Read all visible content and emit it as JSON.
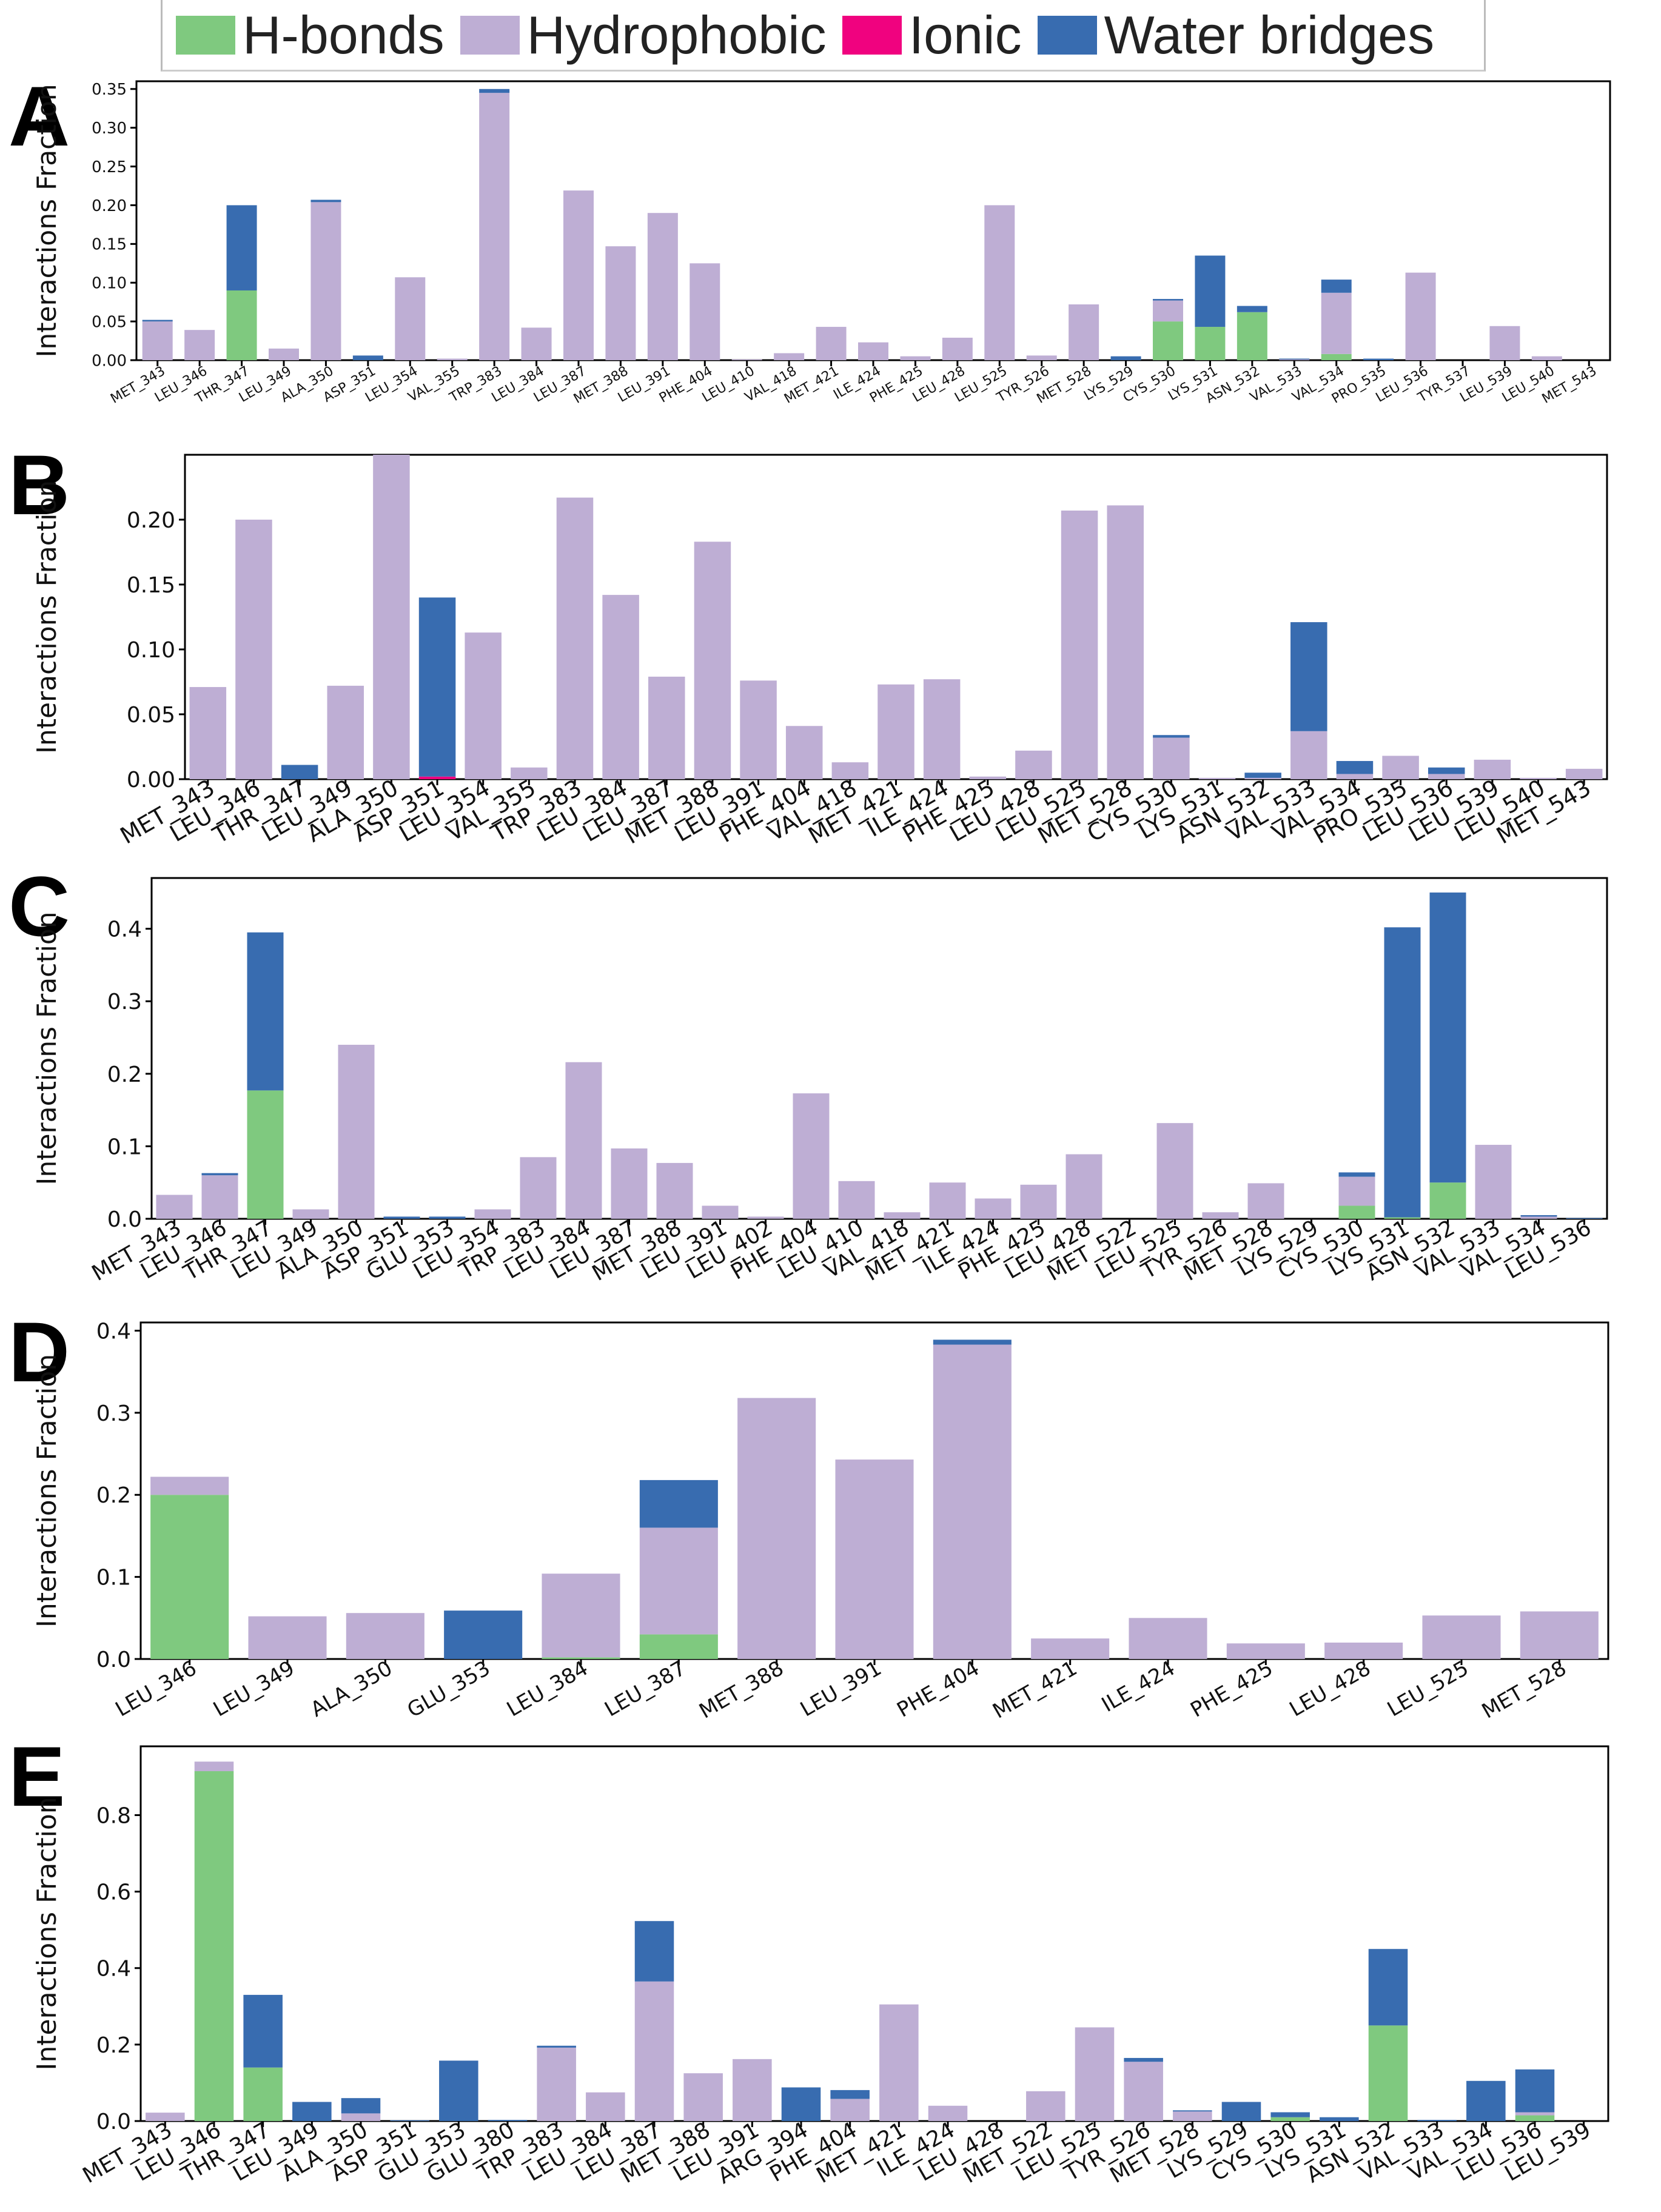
{
  "legend": {
    "items": [
      {
        "label": "H-bonds",
        "color": "#7fc97f"
      },
      {
        "label": "Hydrophobic",
        "color": "#beaed4"
      },
      {
        "label": "Ionic",
        "color": "#f0027f"
      },
      {
        "label": "Water bridges",
        "color": "#386cb0"
      }
    ]
  },
  "chart_data": [
    {
      "panel": "A",
      "type": "bar",
      "stacked": true,
      "ylabel": "Interactions Fraction",
      "ylim": [
        0,
        0.36
      ],
      "yticks": [
        "0.00",
        "0.05",
        "0.10",
        "0.15",
        "0.20",
        "0.25",
        "0.30",
        "0.35"
      ],
      "categories": [
        "MET_343",
        "LEU_346",
        "THR_347",
        "LEU_349",
        "ALA_350",
        "ASP_351",
        "LEU_354",
        "VAL_355",
        "TRP_383",
        "LEU_384",
        "LEU_387",
        "MET_388",
        "LEU_391",
        "PHE_404",
        "LEU_410",
        "VAL_418",
        "MET_421",
        "ILE_424",
        "PHE_425",
        "LEU_428",
        "LEU_525",
        "TYR_526",
        "MET_528",
        "LYS_529",
        "CYS_530",
        "LYS_531",
        "ASN_532",
        "VAL_533",
        "VAL_534",
        "PRO_535",
        "LEU_536",
        "TYR_537",
        "LEU_539",
        "LEU_540",
        "MET_543"
      ],
      "series": [
        {
          "name": "H-bonds",
          "values": [
            0,
            0,
            0.09,
            0,
            0,
            0,
            0,
            0,
            0,
            0,
            0,
            0,
            0,
            0,
            0,
            0,
            0,
            0,
            0,
            0,
            0,
            0,
            0,
            0,
            0.05,
            0.043,
            0.062,
            0,
            0.008,
            0,
            0,
            0,
            0,
            0,
            0
          ]
        },
        {
          "name": "Hydrophobic",
          "values": [
            0.05,
            0.039,
            0,
            0.015,
            0.204,
            0,
            0.107,
            0.002,
            0.345,
            0.042,
            0.219,
            0.147,
            0.19,
            0.125,
            0.001,
            0.009,
            0.043,
            0.023,
            0.005,
            0.029,
            0.2,
            0.006,
            0.072,
            0,
            0.027,
            0,
            0,
            0.001,
            0.079,
            0,
            0.113,
            0,
            0.044,
            0.005,
            0
          ]
        },
        {
          "name": "Ionic",
          "values": [
            0,
            0,
            0,
            0,
            0,
            0,
            0,
            0,
            0,
            0,
            0,
            0,
            0,
            0,
            0,
            0,
            0,
            0,
            0,
            0,
            0,
            0,
            0,
            0,
            0,
            0,
            0,
            0,
            0,
            0,
            0,
            0,
            0,
            0,
            0
          ]
        },
        {
          "name": "Water bridges",
          "values": [
            0.002,
            0,
            0.11,
            0,
            0.003,
            0.006,
            0,
            0,
            0.005,
            0,
            0,
            0,
            0,
            0,
            0,
            0,
            0,
            0,
            0,
            0,
            0,
            0,
            0,
            0.005,
            0.002,
            0.092,
            0.008,
            0.001,
            0.017,
            0.002,
            0,
            0,
            0,
            0,
            0
          ]
        }
      ]
    },
    {
      "panel": "B",
      "type": "bar",
      "stacked": true,
      "ylabel": "Interactions Fraction",
      "ylim": [
        0,
        0.25
      ],
      "yticks": [
        "0.00",
        "0.05",
        "0.10",
        "0.15",
        "0.20"
      ],
      "categories": [
        "MET_343",
        "LEU_346",
        "THR_347",
        "LEU_349",
        "ALA_350",
        "ASP_351",
        "LEU_354",
        "VAL_355",
        "TRP_383",
        "LEU_384",
        "LEU_387",
        "MET_388",
        "LEU_391",
        "PHE_404",
        "VAL_418",
        "MET_421",
        "ILE_424",
        "PHE_425",
        "LEU_428",
        "LEU_525",
        "MET_528",
        "CYS_530",
        "LYS_531",
        "ASN_532",
        "VAL_533",
        "VAL_534",
        "PRO_535",
        "LEU_536",
        "LEU_539",
        "LEU_540",
        "MET_543"
      ],
      "series": [
        {
          "name": "H-bonds",
          "values": [
            0,
            0,
            0,
            0,
            0,
            0,
            0,
            0,
            0,
            0,
            0,
            0,
            0,
            0,
            0,
            0,
            0,
            0,
            0,
            0,
            0,
            0,
            0,
            0,
            0,
            0,
            0,
            0,
            0,
            0,
            0
          ]
        },
        {
          "name": "Hydrophobic",
          "values": [
            0.071,
            0.2,
            0,
            0.072,
            0.26,
            0,
            0.113,
            0.009,
            0.217,
            0.142,
            0.079,
            0.183,
            0.076,
            0.041,
            0.013,
            0.073,
            0.077,
            0.002,
            0.022,
            0.207,
            0.211,
            0.032,
            0.001,
            0.001,
            0.037,
            0.004,
            0.018,
            0.004,
            0.015,
            0.001,
            0.008
          ]
        },
        {
          "name": "Ionic",
          "values": [
            0,
            0,
            0,
            0,
            0,
            0.002,
            0,
            0,
            0,
            0,
            0,
            0,
            0,
            0,
            0,
            0,
            0,
            0,
            0,
            0,
            0,
            0,
            0,
            0,
            0,
            0,
            0,
            0,
            0,
            0,
            0
          ]
        },
        {
          "name": "Water bridges",
          "values": [
            0,
            0,
            0.011,
            0,
            0,
            0.138,
            0,
            0,
            0,
            0,
            0,
            0,
            0,
            0,
            0,
            0,
            0,
            0,
            0,
            0,
            0,
            0.002,
            0,
            0.004,
            0.084,
            0.01,
            0,
            0.005,
            0,
            0,
            0
          ]
        }
      ]
    },
    {
      "panel": "C",
      "type": "bar",
      "stacked": true,
      "ylabel": "Interactions Fraction",
      "ylim": [
        0,
        0.47
      ],
      "yticks": [
        "0.0",
        "0.1",
        "0.2",
        "0.3",
        "0.4"
      ],
      "categories": [
        "MET_343",
        "LEU_346",
        "THR_347",
        "LEU_349",
        "ALA_350",
        "ASP_351",
        "GLU_353",
        "LEU_354",
        "TRP_383",
        "LEU_384",
        "LEU_387",
        "MET_388",
        "LEU_391",
        "LEU_402",
        "PHE_404",
        "LEU_410",
        "VAL_418",
        "MET_421",
        "ILE_424",
        "PHE_425",
        "LEU_428",
        "MET_522",
        "LEU_525",
        "TYR_526",
        "MET_528",
        "LYS_529",
        "CYS_530",
        "LYS_531",
        "ASN_532",
        "VAL_533",
        "VAL_534",
        "LEU_536"
      ],
      "series": [
        {
          "name": "H-bonds",
          "values": [
            0,
            0,
            0.177,
            0,
            0,
            0,
            0,
            0,
            0,
            0,
            0,
            0,
            0,
            0,
            0,
            0,
            0,
            0,
            0,
            0,
            0,
            0,
            0,
            0,
            0,
            0,
            0.018,
            0.002,
            0.05,
            0,
            0,
            0
          ]
        },
        {
          "name": "Hydrophobic",
          "values": [
            0.033,
            0.06,
            0,
            0.013,
            0.24,
            0,
            0,
            0.013,
            0.085,
            0.216,
            0.097,
            0.077,
            0.018,
            0.003,
            0.173,
            0.052,
            0.009,
            0.05,
            0.028,
            0.047,
            0.089,
            0,
            0.132,
            0.009,
            0.049,
            0,
            0.04,
            0,
            0,
            0.102,
            0.003,
            0
          ]
        },
        {
          "name": "Ionic",
          "values": [
            0,
            0,
            0,
            0,
            0,
            0,
            0,
            0,
            0,
            0,
            0,
            0,
            0,
            0,
            0,
            0,
            0,
            0,
            0,
            0,
            0,
            0,
            0,
            0,
            0,
            0,
            0,
            0,
            0,
            0,
            0,
            0
          ]
        },
        {
          "name": "Water bridges",
          "values": [
            0,
            0.003,
            0.218,
            0,
            0,
            0.003,
            0.003,
            0,
            0,
            0,
            0,
            0,
            0,
            0,
            0,
            0,
            0,
            0,
            0,
            0,
            0,
            0,
            0,
            0,
            0,
            0,
            0.006,
            0.4,
            0.4,
            0,
            0.002,
            0.001
          ]
        }
      ]
    },
    {
      "panel": "D",
      "type": "bar",
      "stacked": true,
      "ylabel": "Interactions Fraction",
      "ylim": [
        0,
        0.41
      ],
      "yticks": [
        "0.0",
        "0.1",
        "0.2",
        "0.3",
        "0.4"
      ],
      "categories": [
        "LEU_346",
        "LEU_349",
        "ALA_350",
        "GLU_353",
        "LEU_384",
        "LEU_387",
        "MET_388",
        "LEU_391",
        "PHE_404",
        "MET_421",
        "ILE_424",
        "PHE_425",
        "LEU_428",
        "LEU_525",
        "MET_528"
      ],
      "series": [
        {
          "name": "H-bonds",
          "values": [
            0.2,
            0,
            0,
            0,
            0.002,
            0.03,
            0,
            0,
            0,
            0,
            0,
            0,
            0,
            0,
            0
          ]
        },
        {
          "name": "Hydrophobic",
          "values": [
            0.022,
            0.052,
            0.056,
            0,
            0.102,
            0.13,
            0.318,
            0.243,
            0.383,
            0.025,
            0.05,
            0.019,
            0.02,
            0.053,
            0.058
          ]
        },
        {
          "name": "Ionic",
          "values": [
            0,
            0,
            0,
            0,
            0,
            0,
            0,
            0,
            0,
            0,
            0,
            0,
            0,
            0,
            0
          ]
        },
        {
          "name": "Water bridges",
          "values": [
            0,
            0,
            0,
            0.059,
            0,
            0.058,
            0,
            0,
            0.006,
            0,
            0,
            0,
            0,
            0,
            0
          ]
        }
      ]
    },
    {
      "panel": "E",
      "type": "bar",
      "stacked": true,
      "ylabel": "Interactions Fraction",
      "ylim": [
        0,
        0.98
      ],
      "yticks": [
        "0.0",
        "0.2",
        "0.4",
        "0.6",
        "0.8"
      ],
      "categories": [
        "MET_343",
        "LEU_346",
        "THR_347",
        "LEU_349",
        "ALA_350",
        "ASP_351",
        "GLU_353",
        "GLU_380",
        "TRP_383",
        "LEU_384",
        "LEU_387",
        "MET_388",
        "LEU_391",
        "ARG_394",
        "PHE_404",
        "MET_421",
        "ILE_424",
        "LEU_428",
        "MET_522",
        "LEU_525",
        "TYR_526",
        "MET_528",
        "LYS_529",
        "CYS_530",
        "LYS_531",
        "ASN_532",
        "VAL_533",
        "VAL_534",
        "LEU_536",
        "LEU_539"
      ],
      "series": [
        {
          "name": "H-bonds",
          "values": [
            0,
            0.915,
            0.14,
            0,
            0,
            0,
            0,
            0,
            0,
            0,
            0,
            0,
            0,
            0,
            0,
            0,
            0,
            0,
            0,
            0,
            0,
            0,
            0,
            0.01,
            0,
            0.25,
            0,
            0,
            0.015,
            0
          ]
        },
        {
          "name": "Hydrophobic",
          "values": [
            0.022,
            0.025,
            0,
            0,
            0.02,
            0,
            0,
            0,
            0.192,
            0.075,
            0.365,
            0.125,
            0.162,
            0,
            0.058,
            0.305,
            0.04,
            0,
            0.078,
            0.245,
            0.155,
            0.025,
            0,
            0,
            0,
            0,
            0,
            0,
            0.008,
            0
          ]
        },
        {
          "name": "Ionic",
          "values": [
            0,
            0,
            0,
            0,
            0,
            0,
            0,
            0,
            0,
            0,
            0,
            0,
            0,
            0,
            0,
            0,
            0,
            0,
            0,
            0,
            0,
            0,
            0,
            0,
            0,
            0,
            0,
            0,
            0,
            0
          ]
        },
        {
          "name": "Water bridges",
          "values": [
            0,
            0,
            0.19,
            0.05,
            0.04,
            0.002,
            0.158,
            0.003,
            0.005,
            0,
            0.158,
            0,
            0,
            0.088,
            0.023,
            0,
            0,
            0,
            0,
            0,
            0.01,
            0.003,
            0.05,
            0.013,
            0.01,
            0.2,
            0.003,
            0.105,
            0.112,
            0
          ]
        }
      ]
    }
  ]
}
